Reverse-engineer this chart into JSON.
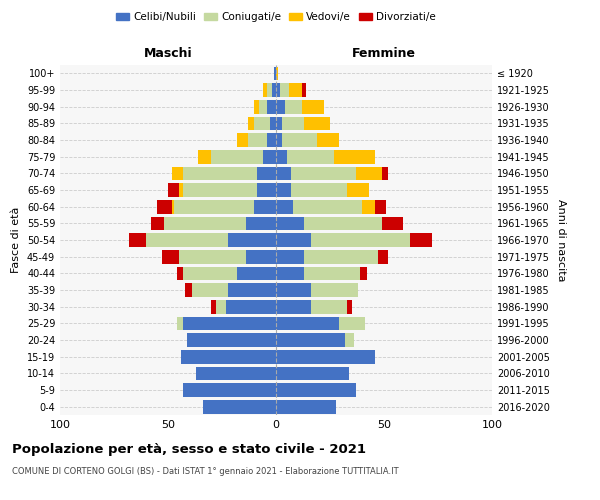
{
  "age_groups": [
    "0-4",
    "5-9",
    "10-14",
    "15-19",
    "20-24",
    "25-29",
    "30-34",
    "35-39",
    "40-44",
    "45-49",
    "50-54",
    "55-59",
    "60-64",
    "65-69",
    "70-74",
    "75-79",
    "80-84",
    "85-89",
    "90-94",
    "95-99",
    "100+"
  ],
  "birth_years": [
    "2016-2020",
    "2011-2015",
    "2006-2010",
    "2001-2005",
    "1996-2000",
    "1991-1995",
    "1986-1990",
    "1981-1985",
    "1976-1980",
    "1971-1975",
    "1966-1970",
    "1961-1965",
    "1956-1960",
    "1951-1955",
    "1946-1950",
    "1941-1945",
    "1936-1940",
    "1931-1935",
    "1926-1930",
    "1921-1925",
    "≤ 1920"
  ],
  "male_celibi": [
    34,
    43,
    37,
    44,
    41,
    43,
    23,
    22,
    18,
    14,
    22,
    14,
    10,
    9,
    9,
    6,
    4,
    3,
    4,
    2,
    1
  ],
  "male_coniugati": [
    0,
    0,
    0,
    0,
    0,
    3,
    5,
    17,
    25,
    31,
    38,
    38,
    37,
    34,
    34,
    24,
    9,
    7,
    4,
    2,
    0
  ],
  "male_vedovi": [
    0,
    0,
    0,
    0,
    0,
    0,
    0,
    0,
    0,
    0,
    0,
    0,
    1,
    2,
    5,
    6,
    5,
    3,
    2,
    2,
    0
  ],
  "male_divorziati": [
    0,
    0,
    0,
    0,
    0,
    0,
    2,
    3,
    3,
    8,
    8,
    6,
    7,
    5,
    0,
    0,
    0,
    0,
    0,
    0,
    0
  ],
  "female_celibi": [
    28,
    37,
    34,
    46,
    32,
    29,
    16,
    16,
    13,
    13,
    16,
    13,
    8,
    7,
    7,
    5,
    3,
    3,
    4,
    2,
    0
  ],
  "female_coniugati": [
    0,
    0,
    0,
    0,
    4,
    12,
    17,
    22,
    26,
    34,
    46,
    36,
    32,
    26,
    30,
    22,
    16,
    10,
    8,
    4,
    0
  ],
  "female_vedovi": [
    0,
    0,
    0,
    0,
    0,
    0,
    0,
    0,
    0,
    0,
    0,
    0,
    6,
    10,
    12,
    19,
    10,
    12,
    10,
    6,
    1
  ],
  "female_divorziati": [
    0,
    0,
    0,
    0,
    0,
    0,
    2,
    0,
    3,
    5,
    10,
    10,
    5,
    0,
    3,
    0,
    0,
    0,
    0,
    2,
    0
  ],
  "color_celibi": "#4472c4",
  "color_coniugati": "#c5d9a0",
  "color_vedovi": "#ffc000",
  "color_divorziati": "#cc0000",
  "bg_color": "#ffffff",
  "plot_bg": "#f7f7f7",
  "grid_color": "#cccccc",
  "xlim": 100,
  "title": "Popolazione per età, sesso e stato civile - 2021",
  "subtitle": "COMUNE DI CORTENO GOLGI (BS) - Dati ISTAT 1° gennaio 2021 - Elaborazione TUTTITALIA.IT",
  "xlabel_left": "Maschi",
  "xlabel_right": "Femmine",
  "ylabel": "Fasce di età",
  "ylabel_right": "Anni di nascita"
}
